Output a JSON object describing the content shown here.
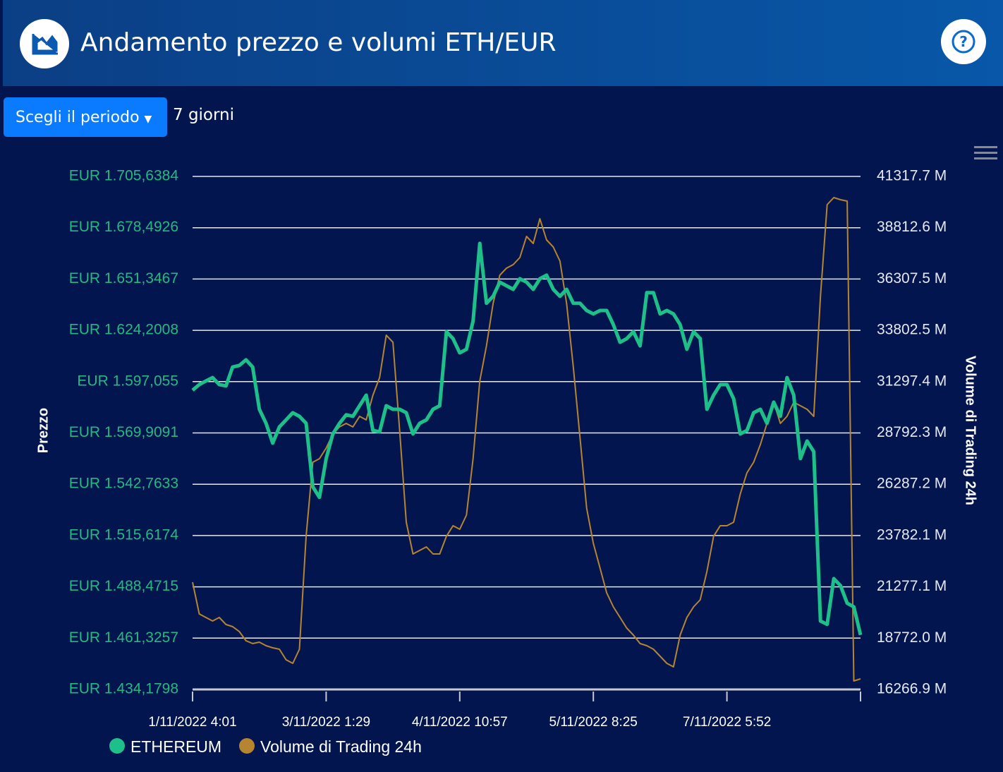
{
  "header": {
    "title": "Andamento prezzo e volumi ETH/EUR"
  },
  "controls": {
    "period_button": "Scegli il periodo",
    "period_value": "7 giorni"
  },
  "chart_data": {
    "type": "line",
    "y_label": "Prezzo",
    "y2_label": "Volume di Trading 24h",
    "categories": [
      "1/11/2022 4:01",
      null,
      null,
      null,
      null,
      null,
      null,
      null,
      null,
      null,
      null,
      null,
      null,
      null,
      null,
      null,
      null,
      null,
      null,
      null,
      "3/11/2022 1:29",
      null,
      null,
      null,
      null,
      null,
      null,
      null,
      null,
      null,
      null,
      null,
      null,
      null,
      null,
      null,
      null,
      null,
      null,
      null,
      "4/11/2022 10:57",
      null,
      null,
      null,
      null,
      null,
      null,
      null,
      null,
      null,
      null,
      null,
      null,
      null,
      null,
      null,
      null,
      null,
      null,
      null,
      "5/11/2022 8:25",
      null,
      null,
      null,
      null,
      null,
      null,
      null,
      null,
      null,
      null,
      null,
      null,
      null,
      null,
      null,
      null,
      null,
      null,
      null,
      "7/11/2022 5:52",
      null,
      null,
      null,
      null,
      null,
      null,
      null,
      null,
      null,
      null,
      null,
      null,
      null,
      null,
      null,
      null,
      null,
      null,
      null,
      null
    ],
    "series": [
      {
        "name": "ETHEREUM",
        "color": "#1ec08a",
        "axis": "y",
        "values": [
          1592.5,
          1595.5,
          1597.4,
          1599.2,
          1595.5,
          1594.8,
          1604.8,
          1605.6,
          1608.6,
          1604.8,
          1582.4,
          1575.0,
          1564.5,
          1573.1,
          1576.8,
          1580.6,
          1578.7,
          1575.0,
          1541.4,
          1535.8,
          1556.3,
          1569.4,
          1575.0,
          1579.5,
          1578.7,
          1584.3,
          1589.9,
          1571.2,
          1570.5,
          1584.3,
          1582.4,
          1582.4,
          1580.6,
          1569.4,
          1575.0,
          1576.8,
          1582.4,
          1584.3,
          1623.5,
          1619.8,
          1612.3,
          1614.2,
          1629.1,
          1670.2,
          1638.5,
          1642.2,
          1649.7,
          1647.8,
          1645.9,
          1651.5,
          1649.7,
          1645.9,
          1651.5,
          1653.4,
          1645.9,
          1642.2,
          1645.9,
          1638.5,
          1638.5,
          1634.7,
          1632.9,
          1634.7,
          1634.7,
          1627.2,
          1617.9,
          1619.8,
          1623.5,
          1616.0,
          1644.1,
          1644.1,
          1632.9,
          1634.7,
          1632.9,
          1627.2,
          1614.2,
          1623.5,
          1619.8,
          1582.4,
          1589.9,
          1595.5,
          1595.5,
          1588.0,
          1569.4,
          1571.2,
          1580.6,
          1582.4,
          1575.0,
          1586.2,
          1578.7,
          1599.2,
          1589.9,
          1556.3,
          1565.6,
          1560.0,
          1470.4,
          1468.6,
          1492.8,
          1489.1,
          1479.8,
          1477.9,
          1463.0
        ]
      },
      {
        "name": "Volume di Trading 24h",
        "color": "#b5852f",
        "axis": "y2",
        "values": [
          21504.8,
          19954.1,
          19781.8,
          19609.5,
          19781.8,
          19437.2,
          19333.8,
          19092.6,
          18644.6,
          18506.8,
          18575.7,
          18403.4,
          18300.0,
          18231.1,
          17714.2,
          17541.9,
          18231.1,
          23744.7,
          27363.0,
          27535.3,
          28052.2,
          28741.4,
          29086.0,
          29258.3,
          29086.0,
          29602.9,
          29430.6,
          30636.7,
          31498.2,
          33565.8,
          33221.2,
          28913.7,
          24433.9,
          22883.2,
          23055.5,
          23227.8,
          22883.2,
          22883.2,
          23744.7,
          24261.6,
          24089.3,
          24778.5,
          27535.3,
          31325.9,
          33048.9,
          35116.5,
          36494.9,
          36839.5,
          37011.8,
          37356.4,
          38390.2,
          38045.6,
          39251.7,
          38217.9,
          37873.3,
          37184.1,
          35116.5,
          32015.1,
          28569.1,
          25123.1,
          23400.1,
          22194.0,
          20987.9,
          20298.7,
          19781.8,
          19264.9,
          18920.3,
          18506.8,
          18403.4,
          18231.1,
          17886.5,
          17541.9,
          17369.6,
          18920.3,
          19781.8,
          20298.7,
          20643.3,
          22021.7,
          23744.7,
          24261.6,
          24261.6,
          24433.9,
          25812.3,
          26846.1,
          27363.0,
          28224.5,
          29258.3,
          30292.1,
          29258.3,
          29602.9,
          30292.1,
          30119.8,
          29947.5,
          29602.9,
          35461.1,
          39940.9,
          40285.5,
          40182.1,
          40113.2,
          16680.4,
          16783.8
        ]
      }
    ],
    "ylim": [
      1434.1798,
      1705.6384
    ],
    "yticks": [
      {
        "value": 1434.1798,
        "label": "EUR 1.434,1798"
      },
      {
        "value": 1461.3257,
        "label": "EUR 1.461,3257"
      },
      {
        "value": 1488.4715,
        "label": "EUR 1.488,4715"
      },
      {
        "value": 1515.6174,
        "label": "EUR 1.515,6174"
      },
      {
        "value": 1542.7633,
        "label": "EUR 1.542,7633"
      },
      {
        "value": 1569.9091,
        "label": "EUR 1.569,9091"
      },
      {
        "value": 1597.055,
        "label": "EUR 1.597,055"
      },
      {
        "value": 1624.2008,
        "label": "EUR 1.624,2008"
      },
      {
        "value": 1651.3467,
        "label": "EUR 1.651,3467"
      },
      {
        "value": 1678.4926,
        "label": "EUR 1.678,4926"
      },
      {
        "value": 1705.6384,
        "label": "EUR 1.705,6384"
      }
    ],
    "y2lim": [
      16266.9,
      41317.7
    ],
    "y2ticks": [
      {
        "value": 16266.9,
        "label": "16266.9 M"
      },
      {
        "value": 18772.0,
        "label": "18772.0 M"
      },
      {
        "value": 21277.1,
        "label": "21277.1 M"
      },
      {
        "value": 23782.1,
        "label": "23782.1 M"
      },
      {
        "value": 26287.2,
        "label": "26287.2 M"
      },
      {
        "value": 28792.3,
        "label": "28792.3 M"
      },
      {
        "value": 31297.4,
        "label": "31297.4 M"
      },
      {
        "value": 33802.5,
        "label": "33802.5 M"
      },
      {
        "value": 36307.5,
        "label": "36307.5 M"
      },
      {
        "value": 38812.6,
        "label": "38812.6 M"
      },
      {
        "value": 41317.7,
        "label": "41317.7 M"
      }
    ],
    "grid": true
  }
}
